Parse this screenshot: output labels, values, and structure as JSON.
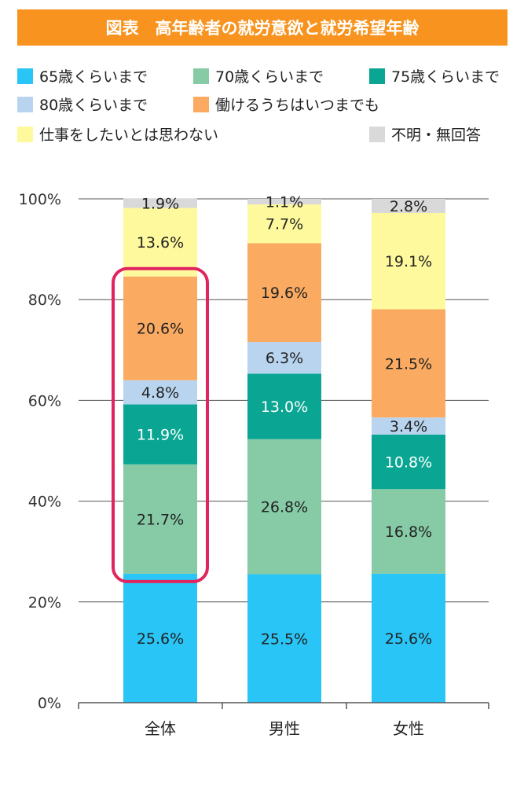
{
  "title": "図表　高年齢者の就労意欲と就労希望年齢",
  "chart_data": {
    "type": "bar",
    "stacked": true,
    "categories": [
      "全体",
      "男性",
      "女性"
    ],
    "yticks": [
      "0%",
      "20%",
      "40%",
      "60%",
      "80%",
      "100%"
    ],
    "ylim": [
      0,
      100
    ],
    "grid": true,
    "legend_position": "top",
    "series": [
      {
        "name": "65歳くらいまで",
        "color": "#29c5f6",
        "values": [
          25.6,
          25.5,
          25.6
        ],
        "labels": [
          "25.6%",
          "25.5%",
          "25.6%"
        ]
      },
      {
        "name": "70歳くらいまで",
        "color": "#86cba6",
        "values": [
          21.7,
          26.8,
          16.8
        ],
        "labels": [
          "21.7%",
          "26.8%",
          "16.8%"
        ]
      },
      {
        "name": "75歳くらいまで",
        "color": "#0aa693",
        "values": [
          11.9,
          13.0,
          10.8
        ],
        "labels": [
          "11.9%",
          "13.0%",
          "10.8%"
        ]
      },
      {
        "name": "80歳くらいまで",
        "color": "#b8d4ef",
        "values": [
          4.8,
          6.3,
          3.4
        ],
        "labels": [
          "4.8%",
          "6.3%",
          "3.4%"
        ]
      },
      {
        "name": "働けるうちはいつまでも",
        "color": "#fbab61",
        "values": [
          20.6,
          19.6,
          21.5
        ],
        "labels": [
          "20.6%",
          "19.6%",
          "21.5%"
        ]
      },
      {
        "name": "仕事をしたいとは思わない",
        "color": "#fef99c",
        "values": [
          13.6,
          7.7,
          19.1
        ],
        "labels": [
          "13.6%",
          "7.7%",
          "19.1%"
        ]
      },
      {
        "name": "不明・無回答",
        "color": "#d9d9d9",
        "values": [
          1.9,
          1.1,
          2.8
        ],
        "labels": [
          "1.9%",
          "1.1%",
          "2.8%"
        ]
      }
    ],
    "highlight": {
      "category": "全体",
      "from": 25.6,
      "to": 84.6,
      "color": "#e0245e"
    }
  }
}
